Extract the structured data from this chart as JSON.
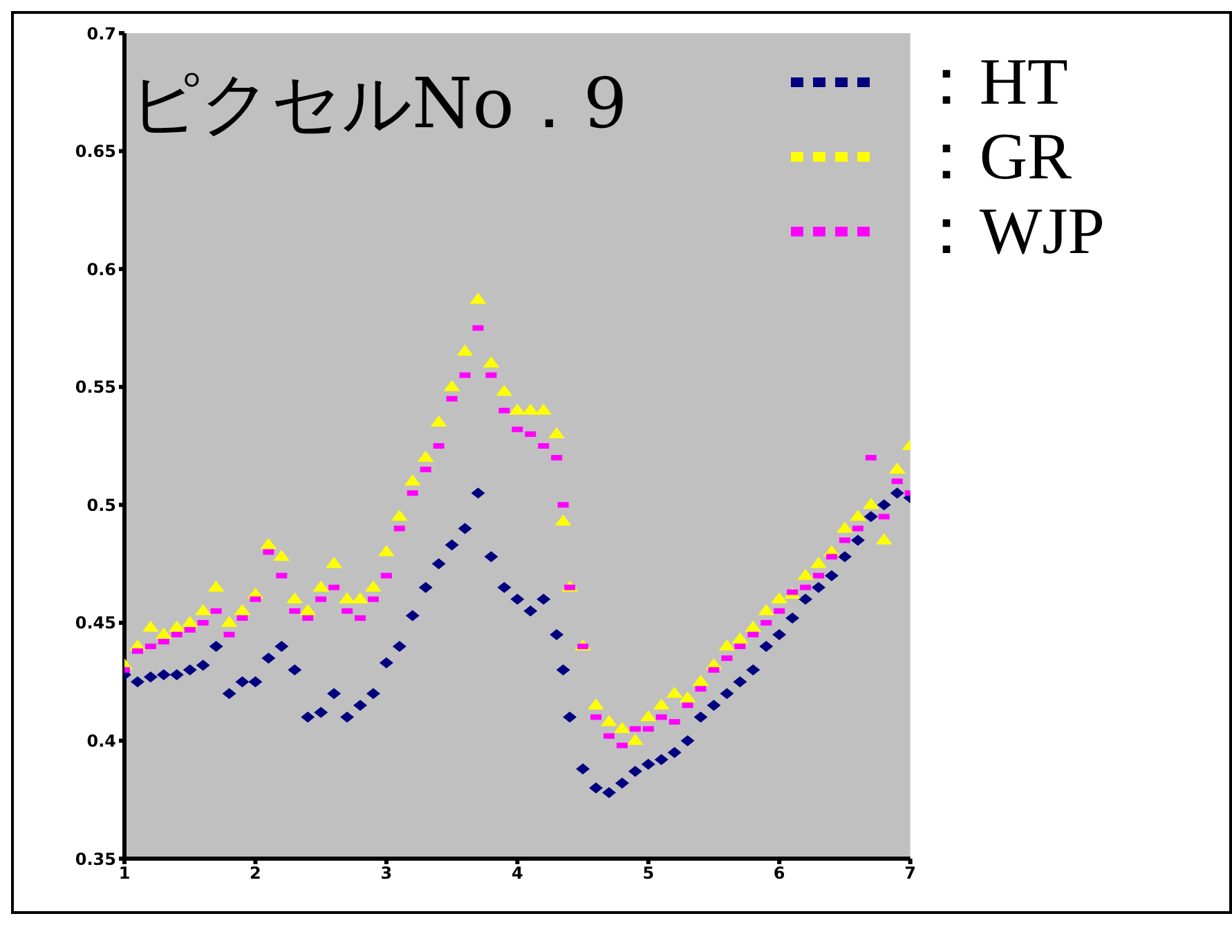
{
  "chart_data": {
    "type": "scatter",
    "title": "ピクセルNo．9",
    "x": [
      1.0,
      1.1,
      1.2,
      1.3,
      1.4,
      1.5,
      1.6,
      1.7,
      1.8,
      1.9,
      2.0,
      2.1,
      2.2,
      2.3,
      2.4,
      2.5,
      2.6,
      2.7,
      2.8,
      2.9,
      3.0,
      3.1,
      3.2,
      3.3,
      3.4,
      3.5,
      3.6,
      3.7,
      3.8,
      3.9,
      4.0,
      4.1,
      4.2,
      4.3,
      4.35,
      4.4,
      4.5,
      4.6,
      4.7,
      4.8,
      4.9,
      5.0,
      5.1,
      5.2,
      5.3,
      5.4,
      5.5,
      5.6,
      5.7,
      5.8,
      5.9,
      6.0,
      6.1,
      6.2,
      6.3,
      6.4,
      6.5,
      6.6,
      6.7,
      6.8,
      6.9,
      7.0
    ],
    "series": [
      {
        "name": "：HT",
        "color": "#000080",
        "marker": "diamond",
        "values": [
          0.428,
          0.425,
          0.427,
          0.428,
          0.428,
          0.43,
          0.432,
          0.44,
          0.42,
          0.425,
          0.425,
          0.435,
          0.44,
          0.43,
          0.41,
          0.412,
          0.42,
          0.41,
          0.415,
          0.42,
          0.433,
          0.44,
          0.453,
          0.465,
          0.475,
          0.483,
          0.49,
          0.505,
          0.478,
          0.465,
          0.46,
          0.455,
          0.46,
          0.445,
          0.43,
          0.41,
          0.388,
          0.38,
          0.378,
          0.382,
          0.387,
          0.39,
          0.392,
          0.395,
          0.4,
          0.41,
          0.415,
          0.42,
          0.425,
          0.43,
          0.44,
          0.445,
          0.452,
          0.46,
          0.465,
          0.47,
          0.478,
          0.485,
          0.495,
          0.5,
          0.505,
          0.503
        ]
      },
      {
        "name": "：GR",
        "color": "#ffff00",
        "marker": "triangle",
        "values": [
          0.432,
          0.44,
          0.448,
          0.445,
          0.448,
          0.45,
          0.455,
          0.465,
          0.45,
          0.455,
          0.462,
          0.483,
          0.478,
          0.46,
          0.455,
          0.465,
          0.475,
          0.46,
          0.46,
          0.465,
          0.48,
          0.495,
          0.51,
          0.52,
          0.535,
          0.55,
          0.565,
          0.587,
          0.56,
          0.548,
          0.54,
          0.54,
          0.54,
          0.53,
          0.493,
          0.465,
          0.44,
          0.415,
          0.408,
          0.405,
          0.4,
          0.41,
          0.415,
          0.42,
          0.418,
          0.425,
          0.432,
          0.44,
          0.443,
          0.448,
          0.455,
          0.46,
          0.462,
          0.47,
          0.475,
          0.48,
          0.49,
          0.495,
          0.5,
          0.485,
          0.515,
          0.525
        ]
      },
      {
        "name": "：WJP",
        "color": "#ff00ff",
        "marker": "square",
        "values": [
          0.43,
          0.438,
          0.44,
          0.442,
          0.445,
          0.447,
          0.45,
          0.455,
          0.445,
          0.452,
          0.46,
          0.48,
          0.47,
          0.455,
          0.452,
          0.46,
          0.465,
          0.455,
          0.452,
          0.46,
          0.47,
          0.49,
          0.505,
          0.515,
          0.525,
          0.545,
          0.555,
          0.575,
          0.555,
          0.54,
          0.532,
          0.53,
          0.525,
          0.52,
          0.5,
          0.465,
          0.44,
          0.41,
          0.402,
          0.398,
          0.405,
          0.405,
          0.41,
          0.408,
          0.415,
          0.422,
          0.43,
          0.435,
          0.44,
          0.445,
          0.45,
          0.455,
          0.463,
          0.465,
          0.47,
          0.478,
          0.485,
          0.49,
          0.52,
          0.495,
          0.51,
          0.505
        ]
      }
    ],
    "xlim": [
      1,
      7
    ],
    "xticks": [
      1,
      2,
      3,
      4,
      5,
      6,
      7
    ],
    "ylim": [
      0.35,
      0.7
    ],
    "yticks": [
      0.35,
      0.4,
      0.45,
      0.5,
      0.55,
      0.6,
      0.65,
      0.7
    ],
    "grid": false,
    "legend": "top right"
  }
}
